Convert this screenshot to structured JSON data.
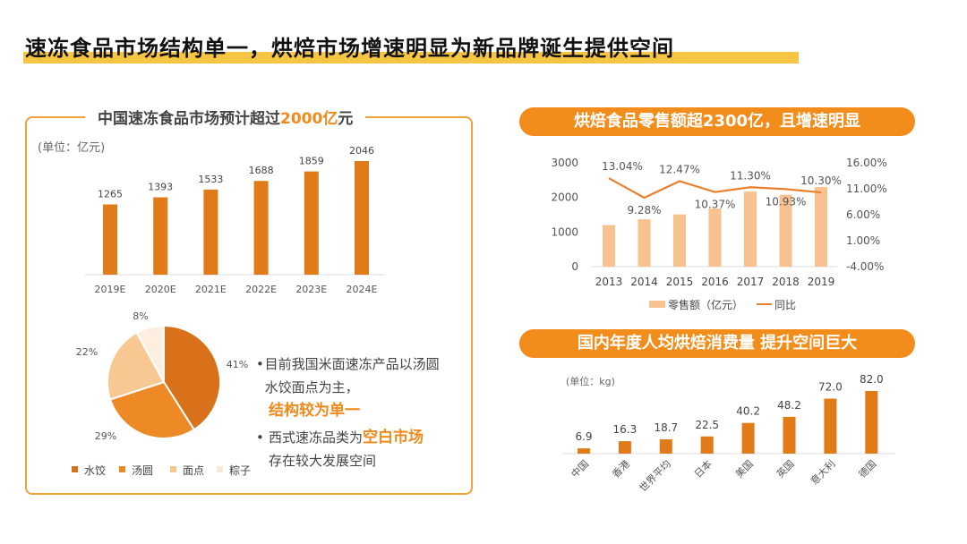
{
  "title": "速冻食品市场结构单一，烘焙市场增速明显为新品牌诞生提供空间",
  "colors": {
    "accent": "#f28c1a",
    "highlight": "#f6c544",
    "bar_dark": "#e07b17",
    "bar_light": "#f7c28f",
    "line": "#ea7f2d"
  },
  "left_panel": {
    "title_prefix": "中国速冻食品市场预计超过",
    "title_highlight": "2000亿",
    "title_suffix": "元",
    "unit": "(单位：亿元)",
    "bullets": [
      {
        "text": "目前我国米面速冻产品以汤圆水饺面点为主，",
        "highlight": "结构较为单一"
      },
      {
        "text": "西式速冻品类为",
        "highlight": "空白市场",
        "tail": "存在较大发展空间"
      }
    ]
  },
  "chart_data": [
    {
      "type": "bar",
      "categories": [
        "2019E",
        "2020E",
        "2021E",
        "2022E",
        "2023E",
        "2024E"
      ],
      "values": [
        1265,
        1393,
        1533,
        1688,
        1859,
        2046
      ],
      "ylabel": "(单位：亿元)"
    },
    {
      "type": "pie",
      "labels": [
        "水饺",
        "汤圆",
        "面点",
        "粽子"
      ],
      "values": [
        41,
        29,
        22,
        8
      ],
      "data_labels": [
        "41%",
        "29%",
        "22%",
        "8%"
      ],
      "colors": [
        "#d9701a",
        "#ee8a26",
        "#f7c892",
        "#fcefdf"
      ],
      "legend": "bottom"
    },
    {
      "type": "bar+line",
      "title": "烘焙食品零售额超2300亿，且增速明显",
      "categories": [
        "2013",
        "2014",
        "2015",
        "2016",
        "2017",
        "2018",
        "2019"
      ],
      "series": [
        {
          "name": "零售额（亿元）",
          "type": "bar",
          "values": [
            1200,
            1370,
            1510,
            1680,
            2170,
            2080,
            2300
          ]
        },
        {
          "name": "同比",
          "type": "line",
          "axis": "right",
          "values": [
            13.04,
            9.28,
            12.47,
            10.37,
            11.3,
            10.93,
            10.3
          ],
          "data_labels": [
            "13.04%",
            "9.28%",
            "12.47%",
            "10.37%",
            "11.30%",
            "10.93%",
            "10.30%"
          ]
        }
      ],
      "ylim": [
        0,
        3000
      ],
      "yticks": [
        "3000",
        "2000",
        "1000",
        "0"
      ],
      "y2lim": [
        -4,
        16
      ],
      "y2ticks": [
        "16.00%",
        "11.00%",
        "6.00%",
        "1.00%",
        "-4.00%"
      ],
      "legend": "bottom"
    },
    {
      "type": "bar",
      "title": "国内年度人均烘焙消费量 提升空间巨大",
      "ylabel": "(单位：kg)",
      "categories": [
        "中国",
        "香港",
        "世界平均",
        "日本",
        "美国",
        "英国",
        "意大利",
        "德国"
      ],
      "values": [
        6.9,
        16.3,
        18.7,
        22.5,
        40.2,
        48.2,
        72.0,
        82.0
      ],
      "data_labels": [
        "6.9",
        "16.3",
        "18.7",
        "22.5",
        "40.2",
        "48.2",
        "72.0",
        "82.0"
      ]
    }
  ]
}
